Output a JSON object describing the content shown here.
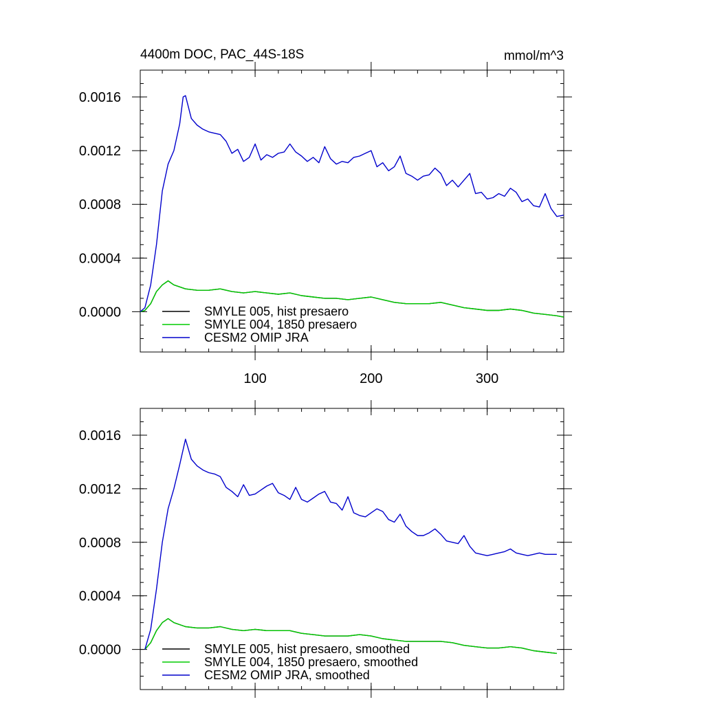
{
  "chart_data": [
    {
      "type": "line",
      "title": "4400m DOC, PAC_44S-18S",
      "units": "mmol/m^3",
      "xlim": [
        1,
        366
      ],
      "ylim": [
        -0.0003,
        0.0018
      ],
      "x_ticks": [
        100,
        200,
        300
      ],
      "x_tick_labels": [
        "100",
        "200",
        "300"
      ],
      "y_ticks": [
        0.0,
        0.0004,
        0.0008,
        0.0012,
        0.0016
      ],
      "y_tick_labels": [
        "0.0000",
        "0.0004",
        "0.0008",
        "0.0012",
        "0.0016"
      ],
      "legend_position": "lower-left",
      "series": [
        {
          "name": "SMYLE 005, hist presaero",
          "color": "#000000",
          "x": [
            1,
            5,
            10,
            15,
            20,
            25,
            30,
            40,
            50,
            60,
            70,
            80,
            90,
            100,
            110,
            120,
            130,
            140,
            150,
            160,
            170,
            180,
            190,
            200,
            210,
            220,
            230,
            240,
            250,
            260,
            270,
            280,
            290,
            300,
            310,
            320,
            330,
            340,
            350,
            360,
            366
          ],
          "y": [
            0.0,
            1e-05,
            6e-05,
            0.00015,
            0.0002,
            0.00023,
            0.0002,
            0.00017,
            0.00016,
            0.00016,
            0.00017,
            0.00015,
            0.00014,
            0.00015,
            0.00014,
            0.00013,
            0.00014,
            0.00012,
            0.00011,
            0.0001,
            0.0001,
            9e-05,
            0.0001,
            0.00011,
            9e-05,
            7e-05,
            6e-05,
            6e-05,
            6e-05,
            7e-05,
            5e-05,
            3e-05,
            2e-05,
            1e-05,
            1e-05,
            2e-05,
            1e-05,
            -1e-05,
            -2e-05,
            -3e-05,
            -4e-05
          ]
        },
        {
          "name": "SMYLE 004, 1850 presaero",
          "color": "#00cc00",
          "x": [
            1,
            5,
            10,
            15,
            20,
            25,
            30,
            40,
            50,
            60,
            70,
            80,
            90,
            100,
            110,
            120,
            130,
            140,
            150,
            160,
            170,
            180,
            190,
            200,
            210,
            220,
            230,
            240,
            250,
            260,
            270,
            280,
            290,
            300,
            310,
            320,
            330,
            340,
            350,
            360,
            366
          ],
          "y": [
            0.0,
            1e-05,
            6e-05,
            0.00015,
            0.0002,
            0.00023,
            0.0002,
            0.00017,
            0.00016,
            0.00016,
            0.00017,
            0.00015,
            0.00014,
            0.00015,
            0.00014,
            0.00013,
            0.00014,
            0.00012,
            0.00011,
            0.0001,
            0.0001,
            9e-05,
            0.0001,
            0.00011,
            9e-05,
            7e-05,
            6e-05,
            6e-05,
            6e-05,
            7e-05,
            5e-05,
            3e-05,
            2e-05,
            1e-05,
            1e-05,
            2e-05,
            1e-05,
            -1e-05,
            -2e-05,
            -3e-05,
            -4e-05
          ]
        },
        {
          "name": "CESM2 OMIP JRA",
          "color": "#0000cc",
          "x": [
            1,
            5,
            10,
            15,
            20,
            25,
            30,
            35,
            38,
            40,
            45,
            50,
            55,
            60,
            65,
            70,
            75,
            80,
            85,
            90,
            95,
            100,
            105,
            110,
            115,
            120,
            125,
            130,
            135,
            140,
            145,
            150,
            155,
            160,
            165,
            170,
            175,
            180,
            185,
            190,
            195,
            200,
            205,
            210,
            215,
            220,
            225,
            230,
            235,
            240,
            245,
            250,
            255,
            260,
            265,
            270,
            275,
            280,
            285,
            290,
            295,
            300,
            305,
            310,
            315,
            320,
            325,
            330,
            335,
            340,
            345,
            350,
            355,
            360,
            366
          ],
          "y": [
            0.0,
            3e-05,
            0.0002,
            0.0005,
            0.0009,
            0.0011,
            0.0012,
            0.0014,
            0.0016,
            0.00161,
            0.00144,
            0.00139,
            0.00136,
            0.00134,
            0.00133,
            0.00132,
            0.00127,
            0.00118,
            0.00121,
            0.00112,
            0.00115,
            0.00125,
            0.00113,
            0.00117,
            0.00115,
            0.00118,
            0.00119,
            0.00125,
            0.00119,
            0.00116,
            0.00112,
            0.00115,
            0.00111,
            0.00123,
            0.00114,
            0.0011,
            0.00112,
            0.00111,
            0.00115,
            0.00116,
            0.00118,
            0.0012,
            0.00108,
            0.00111,
            0.00105,
            0.00108,
            0.00116,
            0.00103,
            0.00101,
            0.00098,
            0.00101,
            0.00102,
            0.00107,
            0.00103,
            0.00094,
            0.00098,
            0.00093,
            0.00098,
            0.00103,
            0.00088,
            0.00089,
            0.00084,
            0.00085,
            0.00088,
            0.00086,
            0.00092,
            0.00089,
            0.00082,
            0.00084,
            0.00079,
            0.00078,
            0.00088,
            0.00077,
            0.00071,
            0.00072
          ]
        }
      ]
    },
    {
      "type": "line",
      "title": "",
      "units": "",
      "xlim": [
        1,
        366
      ],
      "ylim": [
        -0.0003,
        0.0018
      ],
      "x_ticks": [
        100,
        200,
        300
      ],
      "x_tick_labels": [],
      "y_ticks": [
        0.0,
        0.0004,
        0.0008,
        0.0012,
        0.0016
      ],
      "y_tick_labels": [
        "0.0000",
        "0.0004",
        "0.0008",
        "0.0012",
        "0.0016"
      ],
      "legend_position": "lower-left",
      "series": [
        {
          "name": "SMYLE 005, hist presaero, smoothed",
          "color": "#000000",
          "x": [
            5,
            10,
            15,
            20,
            25,
            30,
            40,
            50,
            60,
            70,
            80,
            90,
            100,
            110,
            120,
            130,
            140,
            150,
            160,
            170,
            180,
            190,
            200,
            210,
            220,
            230,
            240,
            250,
            260,
            270,
            280,
            290,
            300,
            310,
            320,
            330,
            340,
            350,
            360
          ],
          "y": [
            0.0,
            5e-05,
            0.00014,
            0.0002,
            0.00023,
            0.0002,
            0.00017,
            0.00016,
            0.00016,
            0.00017,
            0.00015,
            0.00014,
            0.00015,
            0.00014,
            0.00014,
            0.00014,
            0.00012,
            0.00011,
            0.0001,
            0.0001,
            0.0001,
            0.00011,
            0.0001,
            8e-05,
            7e-05,
            6e-05,
            6e-05,
            6e-05,
            6e-05,
            5e-05,
            3e-05,
            2e-05,
            1e-05,
            1e-05,
            2e-05,
            1e-05,
            -1e-05,
            -2e-05,
            -3e-05
          ]
        },
        {
          "name": "SMYLE 004, 1850 presaero, smoothed",
          "color": "#00cc00",
          "x": [
            5,
            10,
            15,
            20,
            25,
            30,
            40,
            50,
            60,
            70,
            80,
            90,
            100,
            110,
            120,
            130,
            140,
            150,
            160,
            170,
            180,
            190,
            200,
            210,
            220,
            230,
            240,
            250,
            260,
            270,
            280,
            290,
            300,
            310,
            320,
            330,
            340,
            350,
            360
          ],
          "y": [
            0.0,
            5e-05,
            0.00014,
            0.0002,
            0.00023,
            0.0002,
            0.00017,
            0.00016,
            0.00016,
            0.00017,
            0.00015,
            0.00014,
            0.00015,
            0.00014,
            0.00014,
            0.00014,
            0.00012,
            0.00011,
            0.0001,
            0.0001,
            0.0001,
            0.00011,
            0.0001,
            8e-05,
            7e-05,
            6e-05,
            6e-05,
            6e-05,
            6e-05,
            5e-05,
            3e-05,
            2e-05,
            1e-05,
            1e-05,
            2e-05,
            1e-05,
            -1e-05,
            -2e-05,
            -3e-05
          ]
        },
        {
          "name": "CESM2 OMIP JRA, smoothed",
          "color": "#0000cc",
          "x": [
            5,
            10,
            15,
            20,
            25,
            30,
            35,
            40,
            45,
            50,
            55,
            60,
            65,
            70,
            75,
            80,
            85,
            90,
            95,
            100,
            105,
            110,
            115,
            120,
            125,
            130,
            135,
            140,
            145,
            150,
            155,
            160,
            165,
            170,
            175,
            180,
            185,
            190,
            195,
            200,
            205,
            210,
            215,
            220,
            225,
            230,
            235,
            240,
            245,
            250,
            255,
            260,
            265,
            270,
            275,
            280,
            285,
            290,
            295,
            300,
            305,
            310,
            315,
            320,
            325,
            330,
            335,
            340,
            345,
            350,
            355,
            360
          ],
          "y": [
            0.0,
            0.00015,
            0.00045,
            0.0008,
            0.00105,
            0.0012,
            0.00138,
            0.00157,
            0.00142,
            0.00137,
            0.00134,
            0.00132,
            0.00131,
            0.00129,
            0.00121,
            0.00118,
            0.00114,
            0.00123,
            0.00115,
            0.00116,
            0.00119,
            0.00122,
            0.00124,
            0.00117,
            0.00115,
            0.00112,
            0.00121,
            0.00112,
            0.0011,
            0.00113,
            0.00116,
            0.00118,
            0.0011,
            0.00109,
            0.00104,
            0.00114,
            0.00102,
            0.001,
            0.00099,
            0.00102,
            0.00105,
            0.00103,
            0.00097,
            0.00095,
            0.00101,
            0.00092,
            0.00088,
            0.00085,
            0.00085,
            0.00087,
            0.0009,
            0.00086,
            0.00081,
            0.0008,
            0.00079,
            0.00085,
            0.00077,
            0.00072,
            0.00071,
            0.0007,
            0.00071,
            0.00072,
            0.00073,
            0.00075,
            0.00072,
            0.00071,
            0.0007,
            0.00071,
            0.00072,
            0.00071,
            0.00071,
            0.00071
          ]
        }
      ]
    }
  ]
}
